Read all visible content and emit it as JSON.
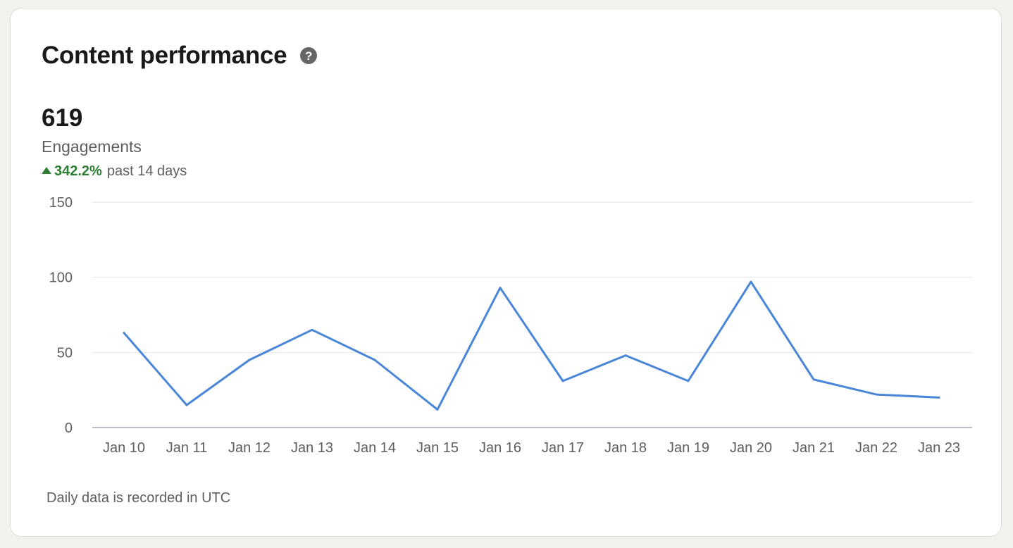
{
  "header": {
    "title": "Content performance",
    "help_icon": "question-circle-icon"
  },
  "metric": {
    "value": "619",
    "label": "Engagements",
    "change": "342.2%",
    "change_direction": "up",
    "change_period": "past 14 days"
  },
  "colors": {
    "line": "#4a86d8",
    "positive": "#2e7d32",
    "gridline": "#e6e6e6",
    "axis": "#a3a7b3"
  },
  "chart_data": {
    "type": "line",
    "title": "",
    "xlabel": "",
    "ylabel": "",
    "categories": [
      "Jan 10",
      "Jan 11",
      "Jan 12",
      "Jan 13",
      "Jan 14",
      "Jan 15",
      "Jan 16",
      "Jan 17",
      "Jan 18",
      "Jan 19",
      "Jan 20",
      "Jan 21",
      "Jan 22",
      "Jan 23"
    ],
    "series": [
      {
        "values": [
          63,
          15,
          45,
          65,
          45,
          12,
          93,
          31,
          48,
          31,
          97,
          32,
          22,
          20
        ]
      }
    ],
    "ylim": [
      0,
      150
    ],
    "yticks": [
      0,
      50,
      100,
      150
    ],
    "grid": true,
    "legend": "none"
  },
  "footnote": "Daily data is recorded in UTC"
}
